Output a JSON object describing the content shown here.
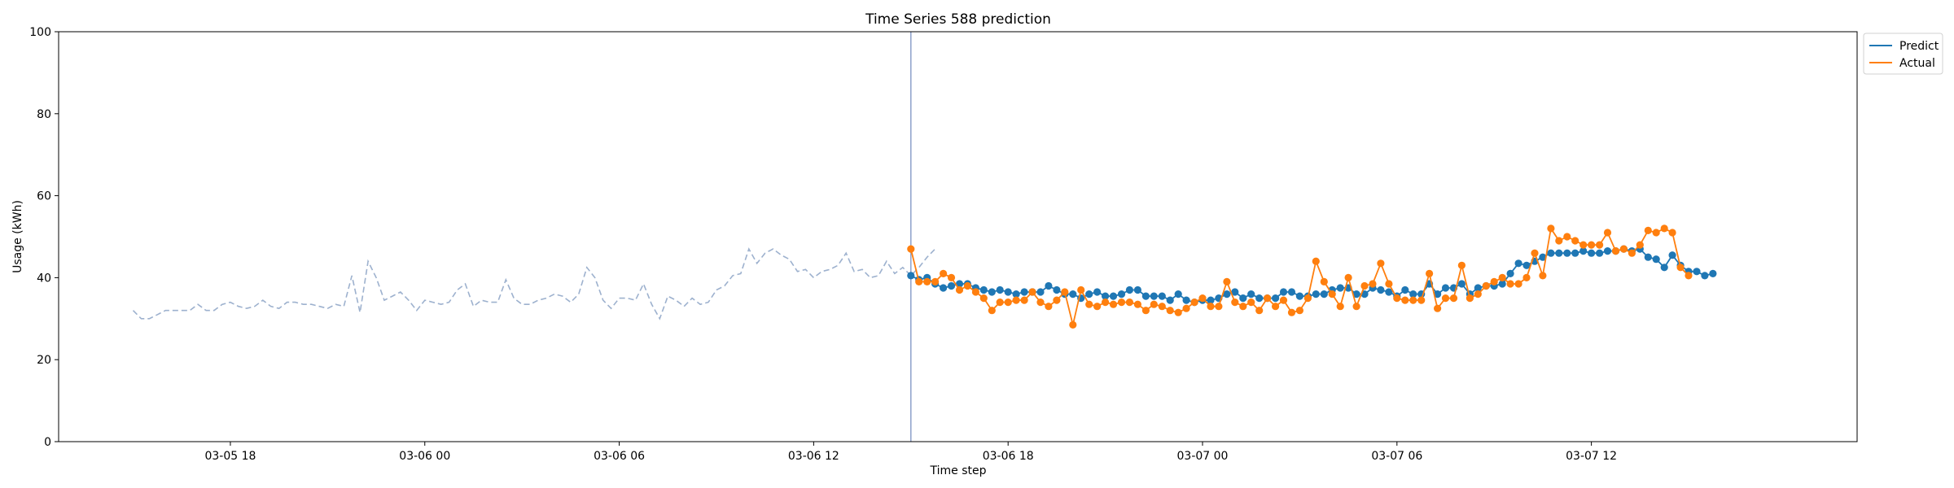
{
  "chart_data": {
    "type": "line",
    "title": "Time Series 588 prediction",
    "xlabel": "Time step",
    "ylabel": "Usage (kWh)",
    "ylim": [
      0,
      100
    ],
    "yticks": [
      0,
      20,
      40,
      60,
      80,
      100
    ],
    "xlim": [
      "2024-03-05 12:42",
      "2024-03-07 20:12"
    ],
    "xticks": [
      {
        "value": "2024-03-05 18:00",
        "label": "03-05 18"
      },
      {
        "value": "2024-03-06 00:00",
        "label": "03-06 00"
      },
      {
        "value": "2024-03-06 06:00",
        "label": "03-06 06"
      },
      {
        "value": "2024-03-06 12:00",
        "label": "03-06 12"
      },
      {
        "value": "2024-03-06 18:00",
        "label": "03-06 18"
      },
      {
        "value": "2024-03-07 00:00",
        "label": "03-07 00"
      },
      {
        "value": "2024-03-07 06:00",
        "label": "03-07 06"
      },
      {
        "value": "2024-03-07 12:00",
        "label": "03-07 12"
      }
    ],
    "grid": false,
    "legend_position": "upper-right-outside",
    "cutoff": "2024-03-06 15:00",
    "history": {
      "start": "2024-03-05 15:00",
      "step_minutes": 15,
      "style": "dashed",
      "color": "#9db1ce",
      "values": [
        32.0,
        30.0,
        30.0,
        31.0,
        32.0,
        32.0,
        32.0,
        32.0,
        33.5,
        32.0,
        32.0,
        33.5,
        34.0,
        33.0,
        32.5,
        33.0,
        34.5,
        33.0,
        32.5,
        34.0,
        34.0,
        33.5,
        33.5,
        33.0,
        32.5,
        33.5,
        33.0,
        40.5,
        31.5,
        44.0,
        40.0,
        34.5,
        35.5,
        36.5,
        34.5,
        32.0,
        34.5,
        34.0,
        33.5,
        34.0,
        37.0,
        38.5,
        33.0,
        34.5,
        34.0,
        34.0,
        39.5,
        35.0,
        33.5,
        33.5,
        34.5,
        35.0,
        36.0,
        35.5,
        34.0,
        36.0,
        42.5,
        40.0,
        34.5,
        32.5,
        35.0,
        35.0,
        34.5,
        38.5,
        33.5,
        30.0,
        35.5,
        34.5,
        33.0,
        35.0,
        33.5,
        34.0,
        37.0,
        38.0,
        40.5,
        41.0,
        47.0,
        43.5,
        46.0,
        47.0,
        45.5,
        44.5,
        41.5,
        42.0,
        40.0,
        41.5,
        42.0,
        43.0,
        46.0,
        41.5,
        42.0,
        40.0,
        40.5,
        44.0,
        41.0,
        42.5,
        40.5,
        42.5,
        45.0,
        47.0
      ]
    },
    "forecast": {
      "start": "2024-03-06 15:00",
      "step_minutes": 15,
      "series": [
        {
          "name": "Predict",
          "color": "#1f77b4",
          "values": [
            40.5,
            39.5,
            40.0,
            38.5,
            37.5,
            38.0,
            38.5,
            38.5,
            37.5,
            37.0,
            36.5,
            37.0,
            36.5,
            36.0,
            36.5,
            36.5,
            36.5,
            38.0,
            37.0,
            36.0,
            36.0,
            35.0,
            36.0,
            36.5,
            35.5,
            35.5,
            36.0,
            37.0,
            37.0,
            35.5,
            35.5,
            35.5,
            34.5,
            36.0,
            34.5,
            34.0,
            34.5,
            34.5,
            35.0,
            36.0,
            36.5,
            35.0,
            36.0,
            35.0,
            35.0,
            35.0,
            36.5,
            36.5,
            35.5,
            35.5,
            36.0,
            36.0,
            37.0,
            37.5,
            37.5,
            36.0,
            36.0,
            37.5,
            37.0,
            36.5,
            35.5,
            37.0,
            36.0,
            36.0,
            38.5,
            36.0,
            37.5,
            37.5,
            38.5,
            36.0,
            37.5,
            38.0,
            38.0,
            38.5,
            41.0,
            43.5,
            43.0,
            44.0,
            45.0,
            46.0,
            46.0,
            46.0,
            46.0,
            46.5,
            46.0,
            46.0,
            46.5,
            46.5,
            47.0,
            46.5,
            47.0,
            45.0,
            44.5,
            42.5,
            45.5,
            43.0,
            41.5,
            41.5,
            40.5,
            41.0
          ]
        },
        {
          "name": "Actual",
          "color": "#ff7f0e",
          "values": [
            47.0,
            39.0,
            39.0,
            39.0,
            41.0,
            40.0,
            37.0,
            38.0,
            36.5,
            35.0,
            32.0,
            34.0,
            34.0,
            34.5,
            34.5,
            36.5,
            34.0,
            33.0,
            34.5,
            36.5,
            28.5,
            37.0,
            33.5,
            33.0,
            34.0,
            33.5,
            34.0,
            34.0,
            33.5,
            32.0,
            33.5,
            33.0,
            32.0,
            31.5,
            32.5,
            34.0,
            35.0,
            33.0,
            33.0,
            39.0,
            34.0,
            33.0,
            34.0,
            32.0,
            35.0,
            33.0,
            34.5,
            31.5,
            32.0,
            35.0,
            44.0,
            39.0,
            36.0,
            33.0,
            40.0,
            33.0,
            38.0,
            38.5,
            43.5,
            38.5,
            35.0,
            34.5,
            34.5,
            34.5,
            41.0,
            32.5,
            35.0,
            35.0,
            43.0,
            35.0,
            36.0,
            38.0,
            39.0,
            40.0,
            38.5,
            38.5,
            40.0,
            46.0,
            40.5,
            52.0,
            49.0,
            50.0,
            49.0,
            48.0,
            48.0,
            48.0,
            51.0,
            46.5,
            47.0,
            46.0,
            48.0,
            51.5,
            51.0,
            52.0,
            51.0,
            42.5,
            40.5
          ]
        }
      ]
    }
  }
}
